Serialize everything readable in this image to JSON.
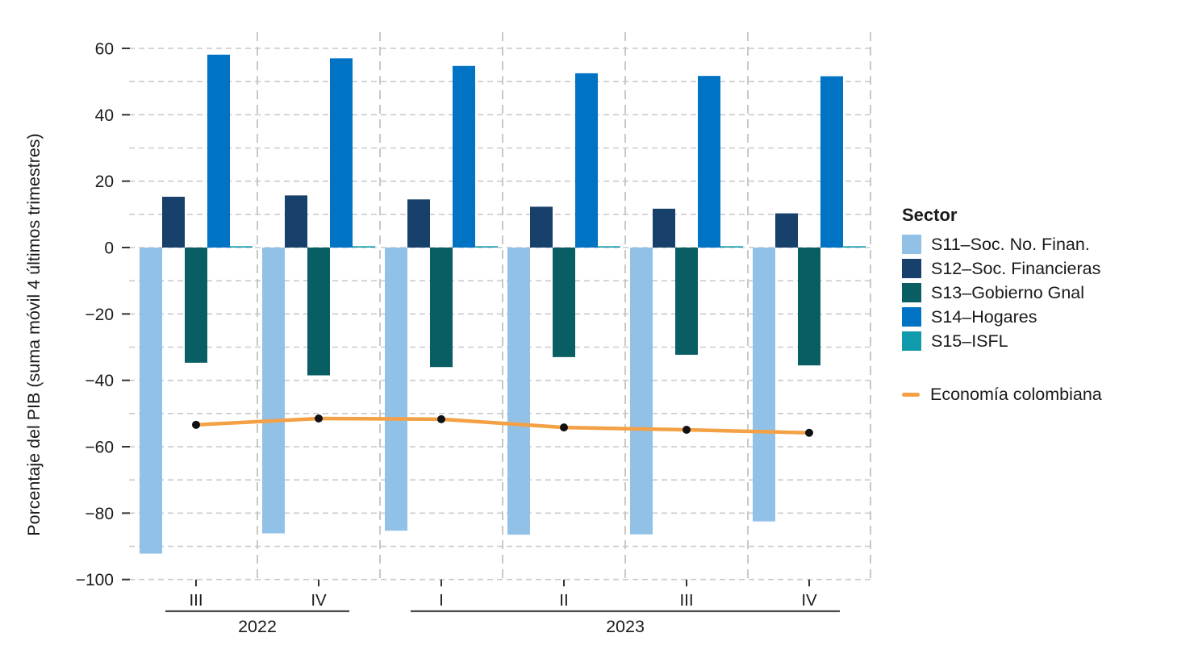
{
  "figure": {
    "legend_title": "Sector"
  },
  "chart_data": {
    "type": "bar",
    "subtype": "grouped bars with line overlay",
    "title": "",
    "xlabel": "",
    "ylabel": "Porcentaje del PIB (suma móvil 4 últimos trimestres)",
    "ylim": [
      -100,
      60
    ],
    "ytick_step": 20,
    "grid_step": 10,
    "grid": true,
    "legend_position": "right",
    "categories": [
      "2022-III",
      "2022-IV",
      "2023-I",
      "2023-II",
      "2023-III",
      "2023-IV"
    ],
    "quarter_labels": [
      "III",
      "IV",
      "I",
      "II",
      "III",
      "IV"
    ],
    "year_groups": [
      {
        "label": "2022",
        "start": 0,
        "end": 1
      },
      {
        "label": "2023",
        "start": 2,
        "end": 5
      }
    ],
    "series": [
      {
        "id": "s11",
        "name": "S11–Soc. No. Finan.",
        "color": "#92c1e7",
        "values": [
          -92.2,
          -86.1,
          -85.3,
          -86.5,
          -86.4,
          -82.5
        ]
      },
      {
        "id": "s12",
        "name": "S12–Soc. Financieras",
        "color": "#17406b",
        "values": [
          15.3,
          15.7,
          14.5,
          12.3,
          11.7,
          10.3
        ]
      },
      {
        "id": "s13",
        "name": "S13–Gobierno Gnal",
        "color": "#095e63",
        "values": [
          -34.7,
          -38.5,
          -36.0,
          -33.0,
          -32.3,
          -35.5
        ]
      },
      {
        "id": "s14",
        "name": "S14–Hogares",
        "color": "#0073c4",
        "values": [
          58.1,
          57.0,
          54.7,
          52.5,
          51.7,
          51.6
        ]
      },
      {
        "id": "s15",
        "name": "S15–ISFL",
        "color": "#0f9bab",
        "values": [
          0.4,
          0.4,
          0.4,
          0.4,
          0.4,
          0.4
        ]
      }
    ],
    "line_series": {
      "id": "economia",
      "name": "Economía colombiana",
      "color": "#f4a044",
      "marker_color": "#111111",
      "values": [
        -53.4,
        -51.5,
        -51.7,
        -54.2,
        -54.9,
        -55.8
      ]
    }
  }
}
